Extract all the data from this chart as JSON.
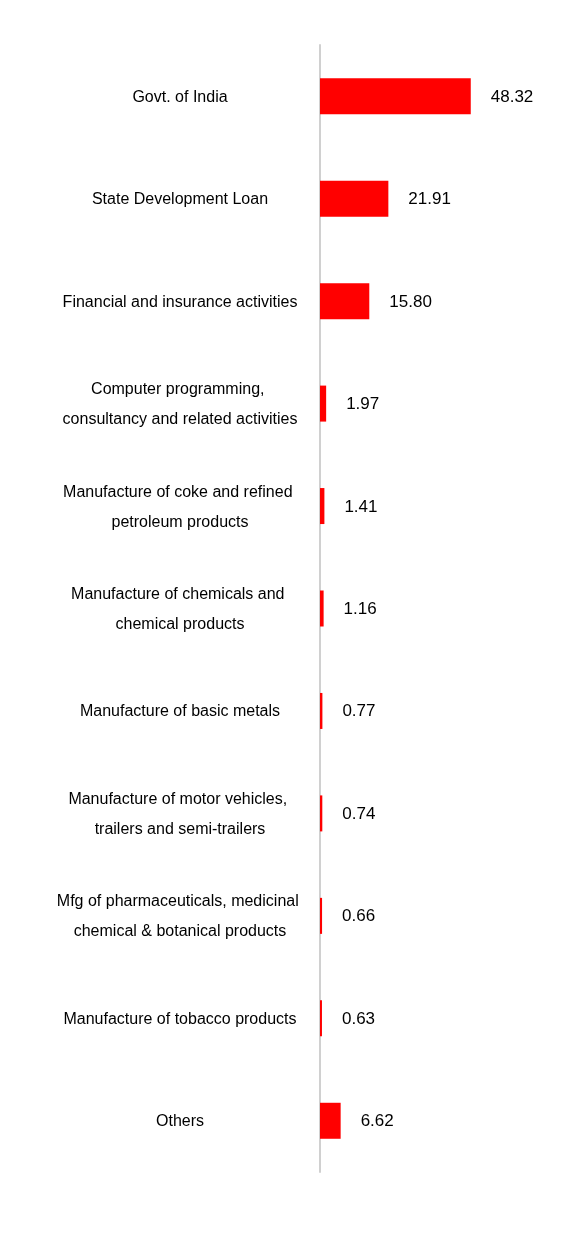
{
  "chart_data": {
    "type": "bar",
    "orientation": "horizontal",
    "categories": [
      "Govt. of India",
      "State Development Loan",
      "Financial and insurance activities",
      "Computer programming, consultancy and related activities",
      "Manufacture of coke and refined petroleum products",
      "Manufacture of chemicals and chemical products",
      "Manufacture of basic metals",
      "Manufacture of motor vehicles, trailers and semi-trailers",
      "Mfg of pharmaceuticals, medicinal chemical & botanical products",
      "Manufacture of tobacco products",
      "Others"
    ],
    "values": [
      48.32,
      21.91,
      15.8,
      1.97,
      1.41,
      1.16,
      0.77,
      0.74,
      0.66,
      0.63,
      6.62
    ],
    "value_labels": [
      "48.32",
      "21.91",
      "15.80",
      "1.97",
      "1.41",
      "1.16",
      "0.77",
      "0.74",
      "0.66",
      "0.63",
      "6.62"
    ],
    "color": "#ff0000",
    "grid": false
  }
}
